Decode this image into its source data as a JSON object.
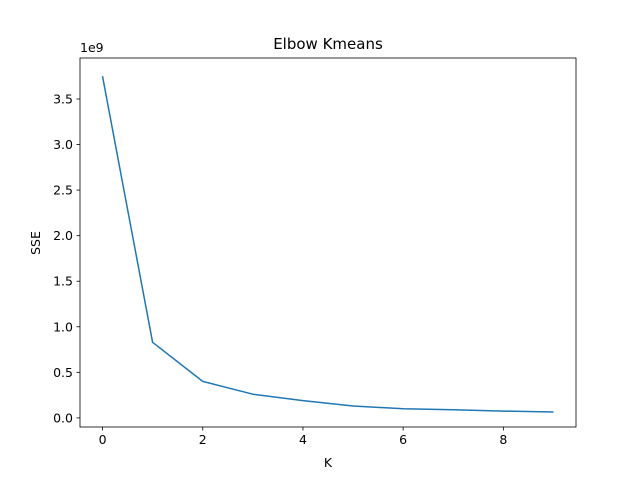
{
  "chart_data": {
    "type": "line",
    "title": "Elbow Kmeans",
    "xlabel": "K",
    "ylabel": "SSE",
    "y_offset_label": "1e9",
    "xlim": [
      -0.45,
      9.45
    ],
    "ylim": [
      -0.1,
      3.95
    ],
    "x_ticks": [
      0,
      2,
      4,
      6,
      8
    ],
    "x_tick_labels": [
      "0",
      "2",
      "4",
      "6",
      "8"
    ],
    "y_ticks": [
      0.0,
      0.5,
      1.0,
      1.5,
      2.0,
      2.5,
      3.0,
      3.5
    ],
    "y_tick_labels": [
      "0.0",
      "0.5",
      "1.0",
      "1.5",
      "2.0",
      "2.5",
      "3.0",
      "3.5"
    ],
    "grid": false,
    "series": [
      {
        "color": "#1f77b4",
        "x": [
          0,
          1,
          2,
          3,
          4,
          5,
          6,
          7,
          8,
          9
        ],
        "y": [
          3.75,
          0.83,
          0.4,
          0.26,
          0.19,
          0.13,
          0.1,
          0.09,
          0.075,
          0.065
        ]
      }
    ]
  }
}
